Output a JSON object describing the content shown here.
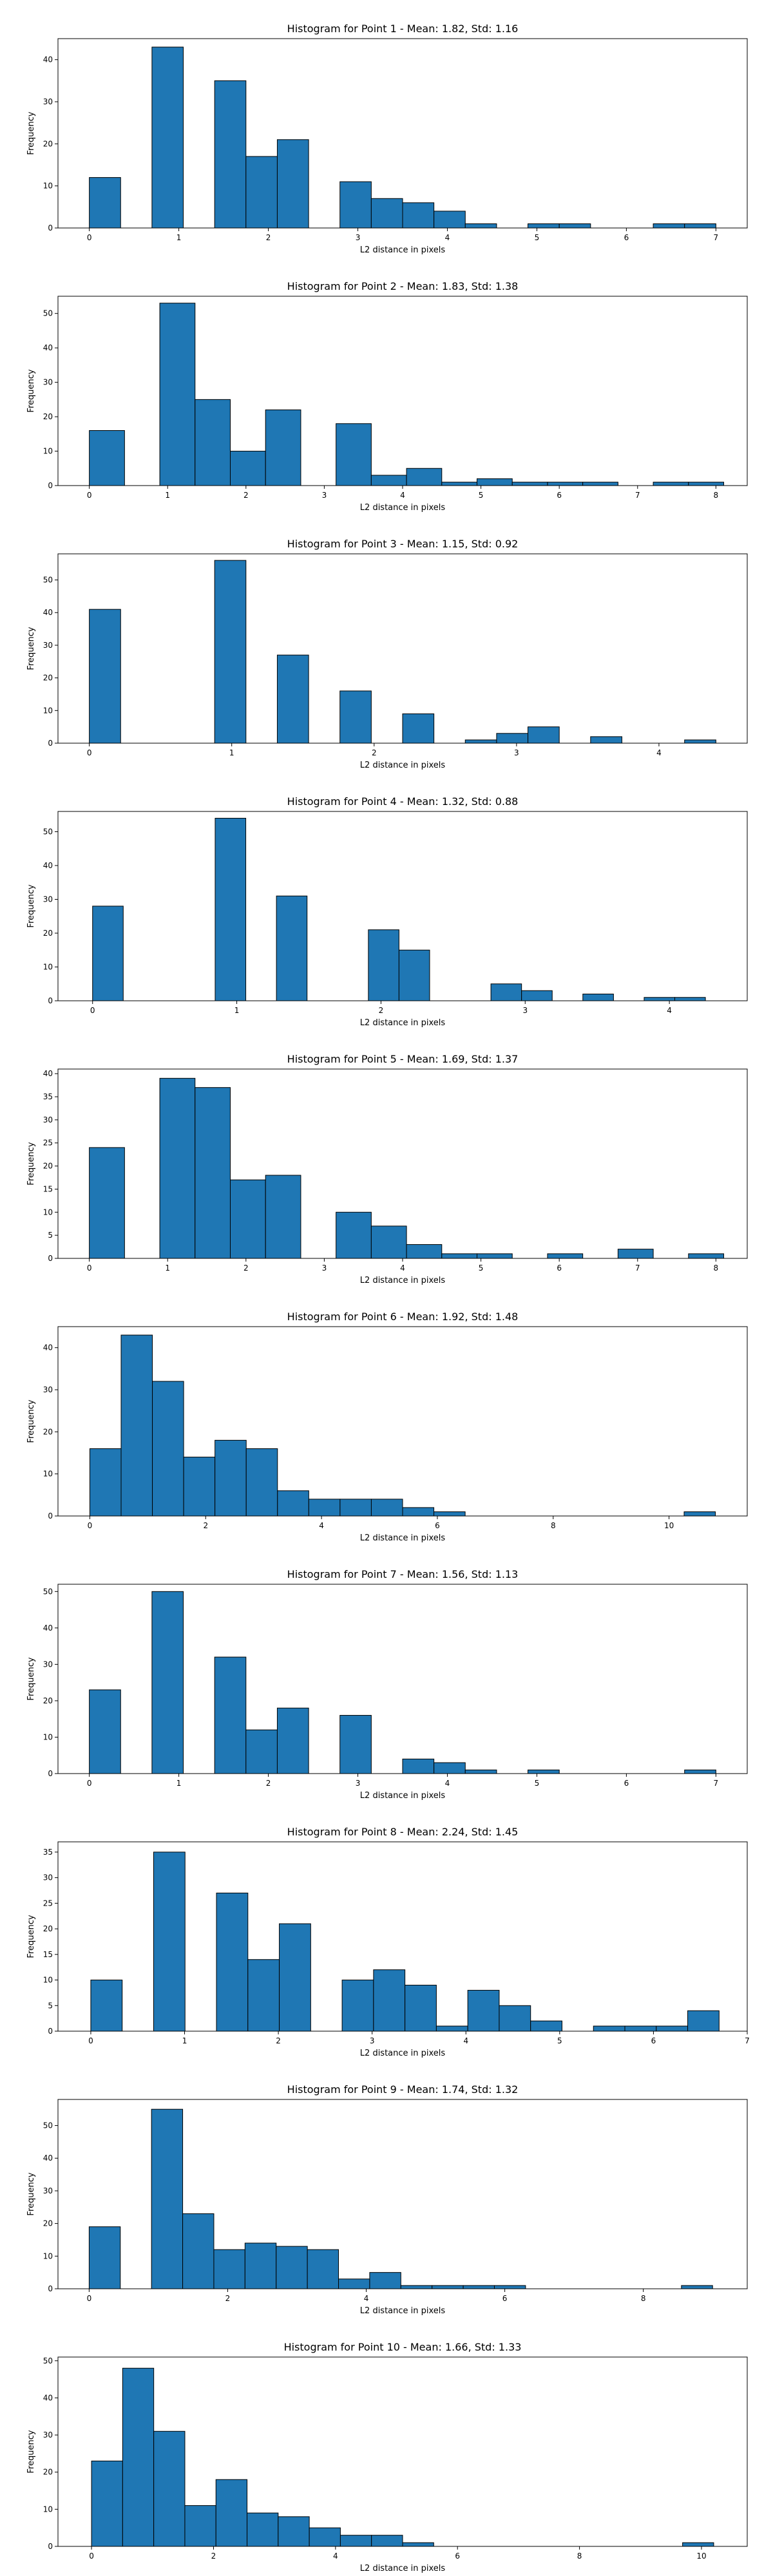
{
  "chart_data": [
    {
      "type": "bar",
      "title": "Histogram for Point 1 - Mean: 1.82, Std: 1.16",
      "xlabel": "L2 distance in pixels",
      "ylabel": "Frequency",
      "xlim": [
        -0.35,
        7.35
      ],
      "ylim": [
        0,
        45
      ],
      "xticks": [
        0,
        1,
        2,
        3,
        4,
        5,
        6,
        7
      ],
      "yticks": [
        0,
        10,
        20,
        30,
        40
      ],
      "bin_edges": [
        0,
        0.35,
        0.7,
        1.05,
        1.4,
        1.75,
        2.1,
        2.45,
        2.8,
        3.15,
        3.5,
        3.85,
        4.2,
        4.55,
        4.9,
        5.25,
        5.6,
        5.95,
        6.3,
        6.65,
        7.0
      ],
      "values": [
        12,
        0,
        43,
        0,
        35,
        17,
        21,
        0,
        11,
        7,
        6,
        4,
        1,
        0,
        1,
        1,
        0,
        0,
        1,
        1
      ]
    },
    {
      "type": "bar",
      "title": "Histogram for Point 2 - Mean: 1.83, Std: 1.38",
      "xlabel": "L2 distance in pixels",
      "ylabel": "Frequency",
      "xlim": [
        -0.4,
        8.4
      ],
      "ylim": [
        0,
        55
      ],
      "xticks": [
        0,
        1,
        2,
        3,
        4,
        5,
        6,
        7,
        8
      ],
      "yticks": [
        0,
        10,
        20,
        30,
        40,
        50
      ],
      "bin_edges": [
        0,
        0.45,
        0.9,
        1.35,
        1.8,
        2.25,
        2.7,
        3.15,
        3.6,
        4.05,
        4.5,
        4.95,
        5.4,
        5.85,
        6.3,
        6.75,
        7.2,
        7.65,
        8.1
      ],
      "values": [
        16,
        0,
        53,
        25,
        10,
        22,
        0,
        18,
        3,
        5,
        1,
        2,
        1,
        1,
        1,
        0,
        1,
        1
      ]
    },
    {
      "type": "bar",
      "title": "Histogram for Point 3 - Mean: 1.15, Std: 0.92",
      "xlabel": "L2 distance in pixels",
      "ylabel": "Frequency",
      "xlim": [
        -0.22,
        4.62
      ],
      "ylim": [
        0,
        58
      ],
      "xticks": [
        0,
        1,
        2,
        3,
        4
      ],
      "yticks": [
        0,
        10,
        20,
        30,
        40,
        50
      ],
      "bin_edges": [
        0,
        0.22,
        0.44,
        0.66,
        0.88,
        1.1,
        1.32,
        1.54,
        1.76,
        1.98,
        2.2,
        2.42,
        2.64,
        2.86,
        3.08,
        3.3,
        3.52,
        3.74,
        3.96,
        4.18,
        4.4
      ],
      "values": [
        41,
        0,
        0,
        0,
        56,
        0,
        27,
        0,
        16,
        0,
        9,
        0,
        1,
        3,
        5,
        0,
        2,
        0,
        0,
        1
      ]
    },
    {
      "type": "bar",
      "title": "Histogram for Point 4 - Mean: 1.32, Std: 0.88",
      "xlabel": "L2 distance in pixels",
      "ylabel": "Frequency",
      "xlim": [
        -0.24,
        4.54
      ],
      "ylim": [
        0,
        56
      ],
      "xticks": [
        0,
        1,
        2,
        3,
        4
      ],
      "yticks": [
        0,
        10,
        20,
        30,
        40,
        50
      ],
      "bin_edges": [
        0,
        0.2125,
        0.425,
        0.6375,
        0.85,
        1.0625,
        1.275,
        1.4875,
        1.7,
        1.9125,
        2.125,
        2.3375,
        2.55,
        2.7625,
        2.975,
        3.1875,
        3.4,
        3.6125,
        3.825,
        4.0375,
        4.25
      ],
      "values": [
        28,
        0,
        0,
        0,
        54,
        0,
        31,
        0,
        0,
        21,
        15,
        0,
        0,
        5,
        3,
        0,
        2,
        0,
        1,
        1
      ]
    },
    {
      "type": "bar",
      "title": "Histogram for Point 5 - Mean: 1.69, Std: 1.37",
      "xlabel": "L2 distance in pixels",
      "ylabel": "Frequency",
      "xlim": [
        -0.4,
        8.4
      ],
      "ylim": [
        0,
        41
      ],
      "xticks": [
        0,
        1,
        2,
        3,
        4,
        5,
        6,
        7,
        8
      ],
      "yticks": [
        0,
        5,
        10,
        15,
        20,
        25,
        30,
        35,
        40
      ],
      "bin_edges": [
        0,
        0.45,
        0.9,
        1.35,
        1.8,
        2.25,
        2.7,
        3.15,
        3.6,
        4.05,
        4.5,
        4.95,
        5.4,
        5.85,
        6.3,
        6.75,
        7.2,
        7.65,
        8.1
      ],
      "values": [
        24,
        0,
        39,
        37,
        17,
        18,
        0,
        10,
        7,
        3,
        1,
        1,
        0,
        1,
        0,
        2,
        0,
        1
      ]
    },
    {
      "type": "bar",
      "title": "Histogram for Point 6 - Mean: 1.92, Std: 1.48",
      "xlabel": "L2 distance in pixels",
      "ylabel": "Frequency",
      "xlim": [
        -0.55,
        11.35
      ],
      "ylim": [
        0,
        45
      ],
      "xticks": [
        0,
        2,
        4,
        6,
        8,
        10
      ],
      "yticks": [
        0,
        10,
        20,
        30,
        40
      ],
      "bin_edges": [
        0,
        0.54,
        1.08,
        1.62,
        2.16,
        2.7,
        3.24,
        3.78,
        4.32,
        4.86,
        5.4,
        5.94,
        6.48,
        7.02,
        7.56,
        8.1,
        8.64,
        9.18,
        9.72,
        10.26,
        10.8
      ],
      "values": [
        16,
        43,
        32,
        14,
        18,
        16,
        6,
        4,
        4,
        4,
        2,
        1,
        0,
        0,
        0,
        0,
        0,
        0,
        0,
        1
      ]
    },
    {
      "type": "bar",
      "title": "Histogram for Point 7 - Mean: 1.56, Std: 1.13",
      "xlabel": "L2 distance in pixels",
      "ylabel": "Frequency",
      "xlim": [
        -0.35,
        7.35
      ],
      "ylim": [
        0,
        52
      ],
      "xticks": [
        0,
        1,
        2,
        3,
        4,
        5,
        6,
        7
      ],
      "yticks": [
        0,
        10,
        20,
        30,
        40,
        50
      ],
      "bin_edges": [
        0,
        0.35,
        0.7,
        1.05,
        1.4,
        1.75,
        2.1,
        2.45,
        2.8,
        3.15,
        3.5,
        3.85,
        4.2,
        4.55,
        4.9,
        5.25,
        5.6,
        5.95,
        6.3,
        6.65,
        7.0
      ],
      "values": [
        23,
        0,
        50,
        0,
        32,
        12,
        18,
        0,
        16,
        0,
        4,
        3,
        1,
        0,
        1,
        0,
        0,
        0,
        0,
        1
      ]
    },
    {
      "type": "bar",
      "title": "Histogram for Point 8 - Mean: 2.24, Std: 1.45",
      "xlabel": "L2 distance in pixels",
      "ylabel": "Frequency",
      "xlim": [
        -0.35,
        7.0
      ],
      "ylim": [
        0,
        37
      ],
      "xticks": [
        0,
        1,
        2,
        3,
        4,
        5,
        6,
        7
      ],
      "yticks": [
        0,
        5,
        10,
        15,
        20,
        25,
        30,
        35
      ],
      "bin_edges": [
        0,
        0.335,
        0.67,
        1.005,
        1.34,
        1.675,
        2.01,
        2.345,
        2.68,
        3.015,
        3.35,
        3.685,
        4.02,
        4.355,
        4.69,
        5.025,
        5.36,
        5.695,
        6.03,
        6.365,
        6.7
      ],
      "values": [
        10,
        0,
        35,
        0,
        27,
        14,
        21,
        0,
        10,
        12,
        9,
        1,
        8,
        5,
        2,
        0,
        1,
        1,
        1,
        4
      ]
    },
    {
      "type": "bar",
      "title": "Histogram for Point 9 - Mean: 1.74, Std: 1.32",
      "xlabel": "L2 distance in pixels",
      "ylabel": "Frequency",
      "xlim": [
        -0.45,
        9.5
      ],
      "ylim": [
        0,
        58
      ],
      "xticks": [
        0,
        2,
        4,
        6,
        8
      ],
      "yticks": [
        0,
        10,
        20,
        30,
        40,
        50
      ],
      "bin_edges": [
        0,
        0.45,
        0.9,
        1.35,
        1.8,
        2.25,
        2.7,
        3.15,
        3.6,
        4.05,
        4.5,
        4.95,
        5.4,
        5.85,
        6.3,
        6.75,
        7.2,
        7.65,
        8.1,
        8.55,
        9.0
      ],
      "values": [
        19,
        0,
        55,
        23,
        12,
        14,
        13,
        12,
        3,
        5,
        1,
        1,
        1,
        1,
        0,
        0,
        0,
        0,
        0,
        1
      ]
    },
    {
      "type": "bar",
      "title": "Histogram for Point 10 - Mean: 1.66, Std: 1.33",
      "xlabel": "L2 distance in pixels",
      "ylabel": "Frequency",
      "xlim": [
        -0.55,
        10.75
      ],
      "ylim": [
        0,
        51
      ],
      "xticks": [
        0,
        2,
        4,
        6,
        8,
        10
      ],
      "yticks": [
        0,
        10,
        20,
        30,
        40,
        50
      ],
      "bin_edges": [
        0,
        0.51,
        1.02,
        1.53,
        2.04,
        2.55,
        3.06,
        3.57,
        4.08,
        4.59,
        5.1,
        5.61,
        6.12,
        6.63,
        7.14,
        7.65,
        8.16,
        8.67,
        9.18,
        9.69,
        10.2
      ],
      "values": [
        23,
        48,
        31,
        11,
        18,
        9,
        8,
        5,
        3,
        3,
        1,
        0,
        0,
        0,
        0,
        0,
        0,
        0,
        0,
        1
      ]
    }
  ]
}
